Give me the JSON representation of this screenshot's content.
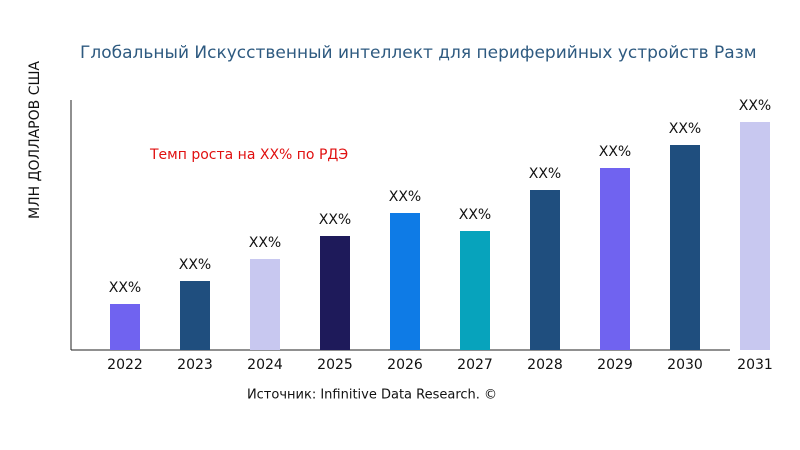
{
  "chart_data": {
    "type": "bar",
    "title": "Глобальный Искусственный интеллект для периферийных устройств Разм",
    "y_label": "МЛН ДОЛЛАРОВ США",
    "annotation": "Темп роста на XX% по РДЭ",
    "source": "Источник: Infinitive Data Research. ©",
    "categories": [
      "2022",
      "2023",
      "2024",
      "2025",
      "2026",
      "2027",
      "2028",
      "2029",
      "2030",
      "2031"
    ],
    "values": [
      46,
      69,
      91,
      114,
      137,
      119,
      160,
      182,
      205,
      228
    ],
    "value_labels": [
      "XX%",
      "XX%",
      "XX%",
      "XX%",
      "XX%",
      "XX%",
      "XX%",
      "XX%",
      "XX%",
      "XX%"
    ],
    "colors": [
      "#7063f0",
      "#1f4e7e",
      "#c8c8f0",
      "#1e1a5a",
      "#0e7be6",
      "#07a3bc",
      "#1f4e7e",
      "#7063f0",
      "#1f4e7e",
      "#c8c8f0"
    ],
    "ylim": [
      0,
      250
    ]
  }
}
